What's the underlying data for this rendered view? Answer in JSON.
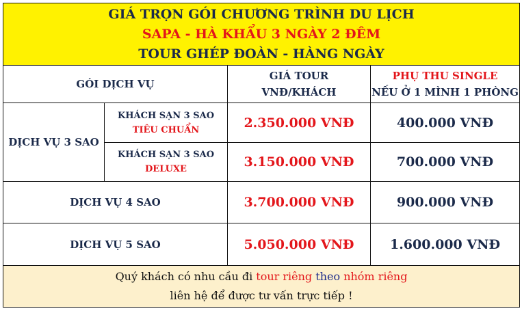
{
  "colors": {
    "header_bg": "#fff200",
    "accent_red": "#e3161b",
    "text_navy": "#1b2a4a",
    "footer_bg": "#fdf0cc"
  },
  "title": {
    "line1": "GIÁ TRỌN GÓI CHƯƠNG TRÌNH DU LỊCH",
    "line2": "SAPA - HÀ KHẨU 3 NGÀY 2 ĐÊM",
    "line3": "TOUR GHÉP ĐOÀN - HÀNG NGÀY"
  },
  "columns": {
    "service": "GÓI DỊCH VỤ",
    "price_line1": "GIÁ TOUR",
    "price_line2": "VNĐ/KHÁCH",
    "single_line1": "PHỤ THU SINGLE",
    "single_line2": "NẾU Ở 1 MÌNH 1 PHÒNG"
  },
  "rows": [
    {
      "service": "DỊCH VỤ 3 SAO",
      "hotel": "KHÁCH SẠN 3 SAO",
      "hotel_type": "TIÊU CHUẨN",
      "price": "2.350.000 VNĐ",
      "single": "400.000 VNĐ"
    },
    {
      "hotel": "KHÁCH SẠN 3 SAO",
      "hotel_type": "DELUXE",
      "price": "3.150.000 VNĐ",
      "single": "700.000 VNĐ"
    },
    {
      "service": "DỊCH VỤ 4 SAO",
      "price": "3.700.000 VNĐ",
      "single": "900.000 VNĐ"
    },
    {
      "service": "DỊCH VỤ 5 SAO",
      "price": "5.050.000 VNĐ",
      "single": "1.600.000 VNĐ"
    }
  ],
  "footer": {
    "part1": "Quý khách có nhu cầu đi ",
    "part2": "tour riêng",
    "part3": " theo ",
    "part4": "nhóm riêng",
    "line2": "liên hệ để được tư vấn trực tiếp !"
  }
}
